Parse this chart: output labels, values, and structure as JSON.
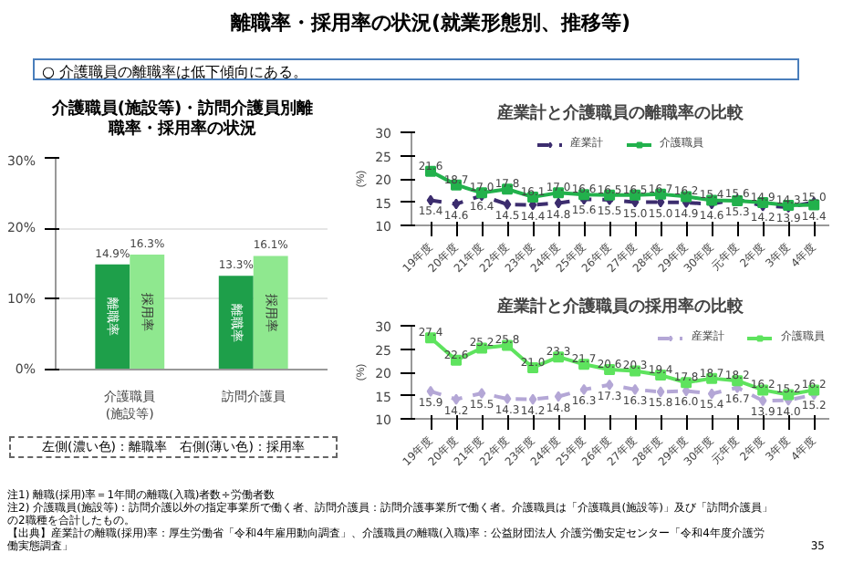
{
  "chart_data": [
    {
      "type": "other",
      "title": "離職率・採用率の状況(就業形態別、推移等)",
      "annotations": [
        "○ 介護職員の離職率は低下傾向にある。",
        "注1) 離職(採用)率＝1年間の離職(入職)者数÷労働者数",
        "注2) 介護職員(施設等)：訪問介護以外の指定事業所で働く者、訪問介護員：訪問介護事業所で働く者。介護職員は「介護職員(施設等)」及び「訪問介護員」の2職種を合計したもの。",
        "【出典】産業計の離職(採用)率：厚生労働省「令和4年雇用動向調査」、介護職員の離職(入職)率：公益財団法人 介護労働安定センター「令和4年度介護労働実態調査」",
        "35"
      ]
    },
    {
      "type": "bar",
      "title": "介護職員(施設等)・訪問介護員別離職率・採用率の状況",
      "categories": [
        "介護職員\n(施設等)",
        "訪問介護員"
      ],
      "series": [
        {
          "name": "離職率",
          "color": "#1e9f4a",
          "values": [
            14.9,
            13.3
          ],
          "value_labels": [
            "14.9%",
            "13.3%"
          ]
        },
        {
          "name": "採用率",
          "color": "#8fe88f",
          "values": [
            16.3,
            16.1
          ],
          "value_labels": [
            "16.3%",
            "16.1%"
          ]
        }
      ],
      "ylim": [
        0,
        30
      ],
      "yticks": [
        {
          "value": 0,
          "label": "0%"
        },
        {
          "value": 10,
          "label": "10%"
        },
        {
          "value": 20,
          "label": "20%"
        },
        {
          "value": 30,
          "label": "30%"
        }
      ],
      "grid": "y",
      "annotations": [
        "左側(濃い色)：離職率　右側(薄い色)：採用率"
      ]
    },
    {
      "type": "line",
      "title": "産業計と介護職員の離職率の比較",
      "ylabel": "(%)",
      "categories": [
        "19年度",
        "20年度",
        "21年度",
        "22年度",
        "23年度",
        "24年度",
        "25年度",
        "26年度",
        "27年度",
        "28年度",
        "29年度",
        "30年度",
        "元年度",
        "2年度",
        "3年度",
        "4年度"
      ],
      "series": [
        {
          "name": "産業計",
          "color": "#3c2d6e",
          "line_style": "dashed",
          "marker": "diamond",
          "values": [
            15.4,
            14.6,
            16.4,
            14.5,
            14.4,
            14.8,
            15.6,
            15.5,
            15.0,
            15.0,
            14.9,
            14.6,
            15.6,
            14.2,
            13.9,
            15.0
          ],
          "value_labels": [
            "15.4",
            "14.6",
            "16.4",
            "14.5",
            "14.4",
            "14.8",
            "15.6",
            "15.5",
            "15.0",
            "15.0",
            "14.9",
            "14.6",
            "15.6",
            "14.2",
            "13.9",
            "15.0"
          ]
        },
        {
          "name": "介護職員",
          "color": "#22b14c",
          "line_style": "solid",
          "marker": "square",
          "values": [
            21.6,
            18.7,
            17.0,
            17.8,
            16.1,
            17.0,
            16.6,
            16.5,
            16.5,
            16.7,
            16.2,
            15.4,
            15.3,
            14.9,
            14.3,
            14.4
          ],
          "value_labels": [
            "21.6",
            "18.7",
            "17.0",
            "17.8",
            "16.1",
            "17.0",
            "16.6",
            "16.5",
            "16.5",
            "16.7",
            "16.2",
            "15.4",
            "15.3",
            "14.9",
            "14.3",
            "14.4"
          ]
        }
      ],
      "ylim": [
        10,
        30
      ],
      "yticks": [
        10,
        15,
        20,
        25,
        30
      ],
      "legend": "top"
    },
    {
      "type": "line",
      "title": "産業計と介護職員の採用率の比較",
      "ylabel": "(%)",
      "categories": [
        "19年度",
        "20年度",
        "21年度",
        "22年度",
        "23年度",
        "24年度",
        "25年度",
        "26年度",
        "27年度",
        "28年度",
        "29年度",
        "30年度",
        "元年度",
        "2年度",
        "3年度",
        "4年度"
      ],
      "series": [
        {
          "name": "産業計",
          "color": "#b4a7d6",
          "line_style": "dashed",
          "marker": "diamond",
          "values": [
            15.9,
            14.2,
            15.5,
            14.3,
            14.2,
            14.8,
            16.3,
            17.3,
            16.3,
            15.8,
            16.0,
            15.4,
            16.7,
            13.9,
            14.0,
            15.2
          ],
          "value_labels": [
            "15.9",
            "14.2",
            "15.5",
            "14.3",
            "14.2",
            "14.8",
            "16.3",
            "17.3",
            "16.3",
            "15.8",
            "16.0",
            "15.4",
            "16.7",
            "13.9",
            "14.0",
            "15.2"
          ]
        },
        {
          "name": "介護職員",
          "color": "#5ee35e",
          "line_style": "solid",
          "marker": "square",
          "values": [
            27.4,
            22.6,
            25.2,
            25.8,
            21.0,
            23.3,
            21.7,
            20.6,
            20.3,
            19.4,
            17.8,
            18.7,
            18.2,
            16.2,
            15.2,
            16.2
          ],
          "value_labels": [
            "27.4",
            "22.6",
            "25.2",
            "25.8",
            "21.0",
            "23.3",
            "21.7",
            "20.6",
            "20.3",
            "19.4",
            "17.8",
            "18.7",
            "18.2",
            "16.2",
            "15.2",
            "16.2"
          ]
        }
      ],
      "ylim": [
        10,
        30
      ],
      "yticks": [
        10,
        15,
        20,
        25,
        30
      ],
      "legend": "top right"
    }
  ]
}
